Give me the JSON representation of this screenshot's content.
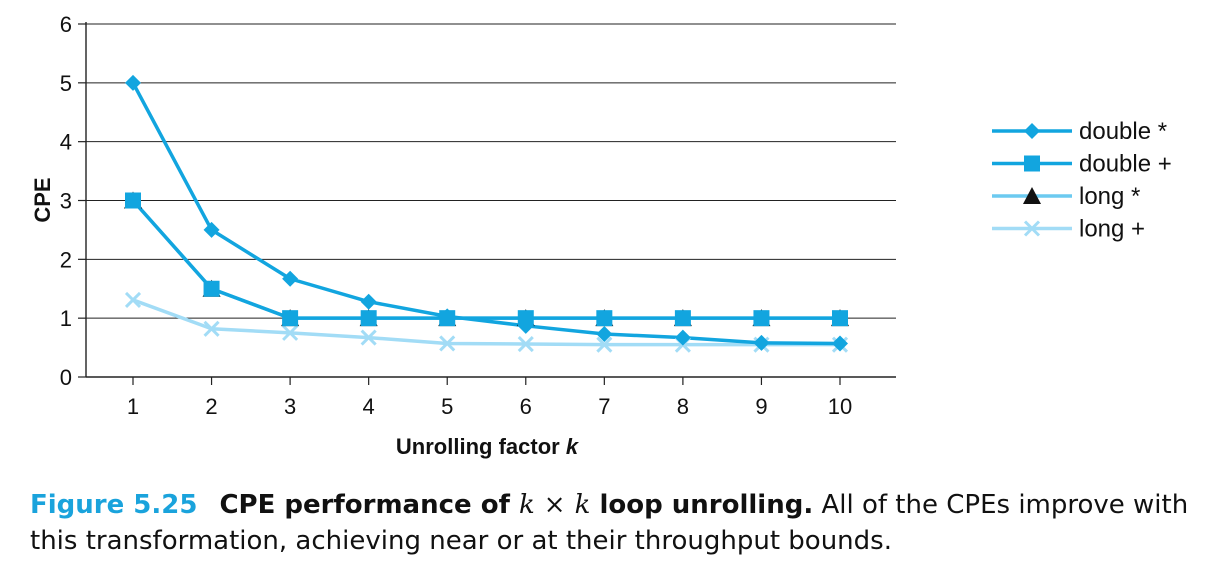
{
  "chart_data": {
    "type": "line",
    "title": "",
    "xlabel": "Unrolling factor",
    "xlabel_var": "k",
    "ylabel": "CPE",
    "x": [
      1,
      2,
      3,
      4,
      5,
      6,
      7,
      8,
      9,
      10
    ],
    "xticks": [
      "1",
      "2",
      "3",
      "4",
      "5",
      "6",
      "7",
      "8",
      "9",
      "10"
    ],
    "yticks": [
      "0",
      "1",
      "2",
      "3",
      "4",
      "5",
      "6"
    ],
    "ylim": [
      0,
      6
    ],
    "grid": "horizontal",
    "legend_position": "right",
    "series": [
      {
        "name": "double *",
        "marker": "diamond",
        "color": "#12a5df",
        "values": [
          5.0,
          2.5,
          1.67,
          1.28,
          1.03,
          0.87,
          0.73,
          0.67,
          0.58,
          0.57
        ]
      },
      {
        "name": "double +",
        "marker": "square",
        "color": "#12a5df",
        "values": [
          3.0,
          1.5,
          1.0,
          1.0,
          1.0,
          1.0,
          1.0,
          1.0,
          1.0,
          1.0
        ]
      },
      {
        "name": "long *",
        "marker": "triangle",
        "color": "#6ccaf0",
        "values": [
          3.0,
          1.5,
          1.0,
          1.0,
          1.0,
          1.0,
          1.0,
          1.0,
          1.0,
          1.0
        ]
      },
      {
        "name": "long +",
        "marker": "x",
        "color": "#a2dcf6",
        "values": [
          1.31,
          0.82,
          0.75,
          0.67,
          0.57,
          0.56,
          0.55,
          0.55,
          0.55,
          0.55
        ]
      }
    ]
  },
  "caption": {
    "figure_number": "Figure 5.25",
    "title_pre": "CPE performance of",
    "title_var1": "k",
    "title_times": "×",
    "title_var2": "k",
    "title_post": "loop unrolling.",
    "body": "All of the CPEs improve with this transformation, achieving near or at their throughput bounds."
  }
}
